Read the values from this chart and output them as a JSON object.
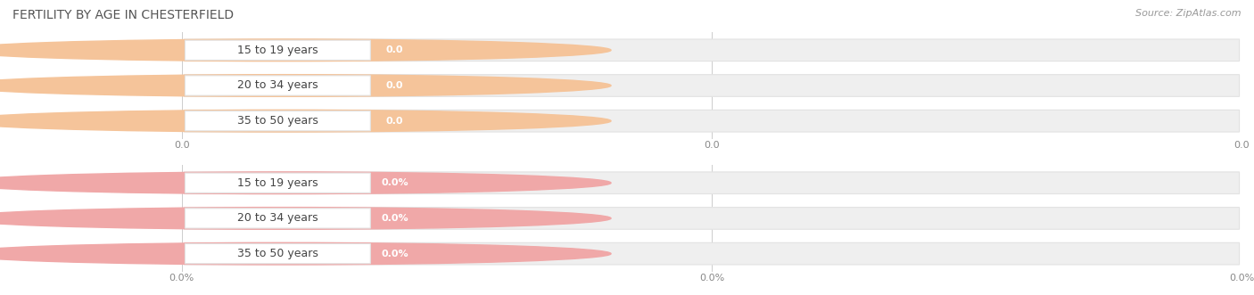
{
  "title": "FERTILITY BY AGE IN CHESTERFIELD",
  "source_text": "Source: ZipAtlas.com",
  "chart1_categories": [
    "15 to 19 years",
    "20 to 34 years",
    "35 to 50 years"
  ],
  "chart1_values": [
    0.0,
    0.0,
    0.0
  ],
  "chart1_bar_color": "#F5C49A",
  "chart1_bar_border": "#E8A870",
  "chart2_categories": [
    "15 to 19 years",
    "20 to 34 years",
    "35 to 50 years"
  ],
  "chart2_values": [
    0.0,
    0.0,
    0.0
  ],
  "chart2_bar_color": "#F0A8A8",
  "chart2_bar_border": "#E08888",
  "chart1_xlabel_ticks": [
    "0.0",
    "0.0",
    "0.0"
  ],
  "chart2_xlabel_ticks": [
    "0.0%",
    "0.0%",
    "0.0%"
  ],
  "bar_height": 0.62,
  "xlim_max": 1.0,
  "figsize": [
    14.06,
    3.31
  ],
  "dpi": 100,
  "background_color": "#FFFFFF",
  "bar_bg_color": "#EFEFEF",
  "bar_bg_border": "#E2E2E2",
  "grid_color": "#CCCCCC",
  "text_color": "#444444",
  "white_color": "#FFFFFF",
  "title_fontsize": 10,
  "label_fontsize": 9,
  "badge_fontsize": 8,
  "tick_fontsize": 8,
  "source_fontsize": 8,
  "title_color": "#555555",
  "source_color": "#999999",
  "tick_color": "#888888"
}
